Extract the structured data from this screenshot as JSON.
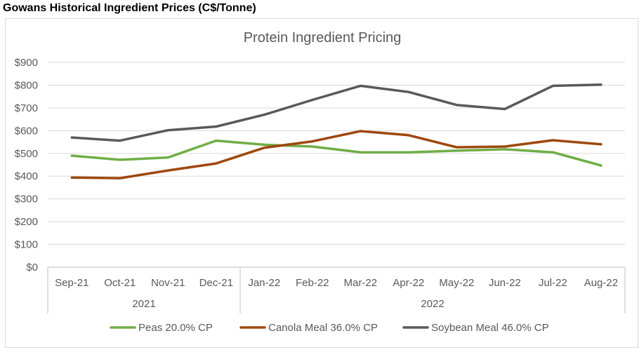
{
  "sheet": {
    "heading": "Gowans Historical Ingredient Prices (C$/Tonne)"
  },
  "chart_data": {
    "type": "line",
    "title": "Protein Ingredient Pricing",
    "categories": [
      "Sep-21",
      "Oct-21",
      "Nov-21",
      "Dec-21",
      "Jan-22",
      "Feb-22",
      "Mar-22",
      "Apr-22",
      "May-22",
      "Jun-22",
      "Jul-22",
      "Aug-22"
    ],
    "category_groups": [
      {
        "label": "2021",
        "count": 4
      },
      {
        "label": "2022",
        "count": 8
      }
    ],
    "y_ticks": [
      "$0",
      "$100",
      "$200",
      "$300",
      "$400",
      "$500",
      "$600",
      "$700",
      "$800",
      "$900"
    ],
    "ylim": [
      0,
      900
    ],
    "ystep": 100,
    "grid": true,
    "legend_position": "bottom",
    "series": [
      {
        "name": "Peas 20.0% CP",
        "color": "#70ad47",
        "values": [
          490,
          472,
          482,
          556,
          538,
          530,
          505,
          505,
          512,
          518,
          505,
          447
        ]
      },
      {
        "name": "Canola Meal 36.0% CP",
        "color": "#9e480e",
        "values": [
          394,
          391,
          425,
          456,
          525,
          553,
          598,
          580,
          527,
          530,
          558,
          540
        ]
      },
      {
        "name": "Soybean Meal 46.0% CP",
        "color": "#595959",
        "values": [
          570,
          556,
          602,
          618,
          670,
          735,
          797,
          770,
          713,
          695,
          797,
          802
        ]
      }
    ]
  }
}
